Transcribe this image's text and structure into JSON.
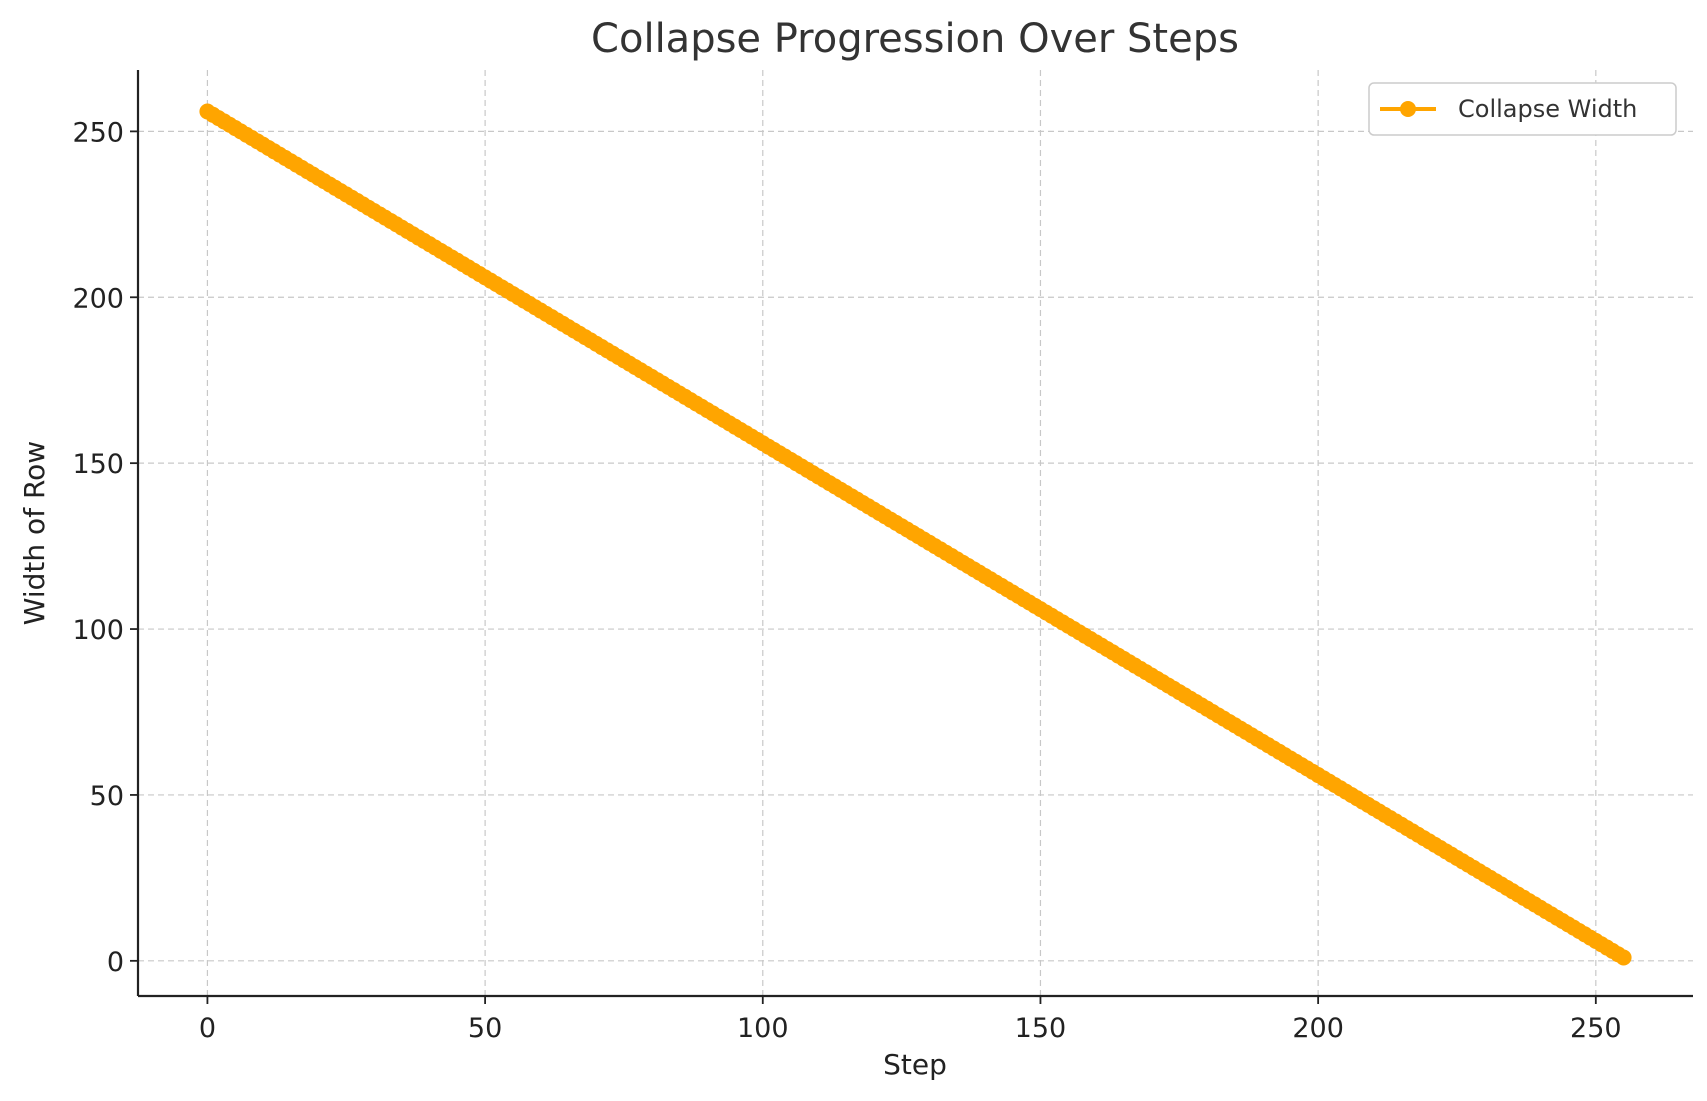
{
  "chart_data": {
    "type": "line",
    "title": "Collapse Progression Over Steps",
    "xlabel": "Step",
    "ylabel": "Width of Row",
    "xlim": [
      -12.5,
      267.5
    ],
    "ylim": [
      -10.6,
      268.5
    ],
    "xticks": [
      0,
      50,
      100,
      150,
      200,
      250
    ],
    "yticks": [
      0,
      50,
      100,
      150,
      200,
      250
    ],
    "grid": true,
    "legend_position": "top-right",
    "series": [
      {
        "name": "Collapse Width",
        "color": "#FFA500",
        "marker": "circle",
        "x_start": 0,
        "x_end": 255,
        "x_step": 1,
        "y_start": 256,
        "y_end": 1
      }
    ]
  }
}
